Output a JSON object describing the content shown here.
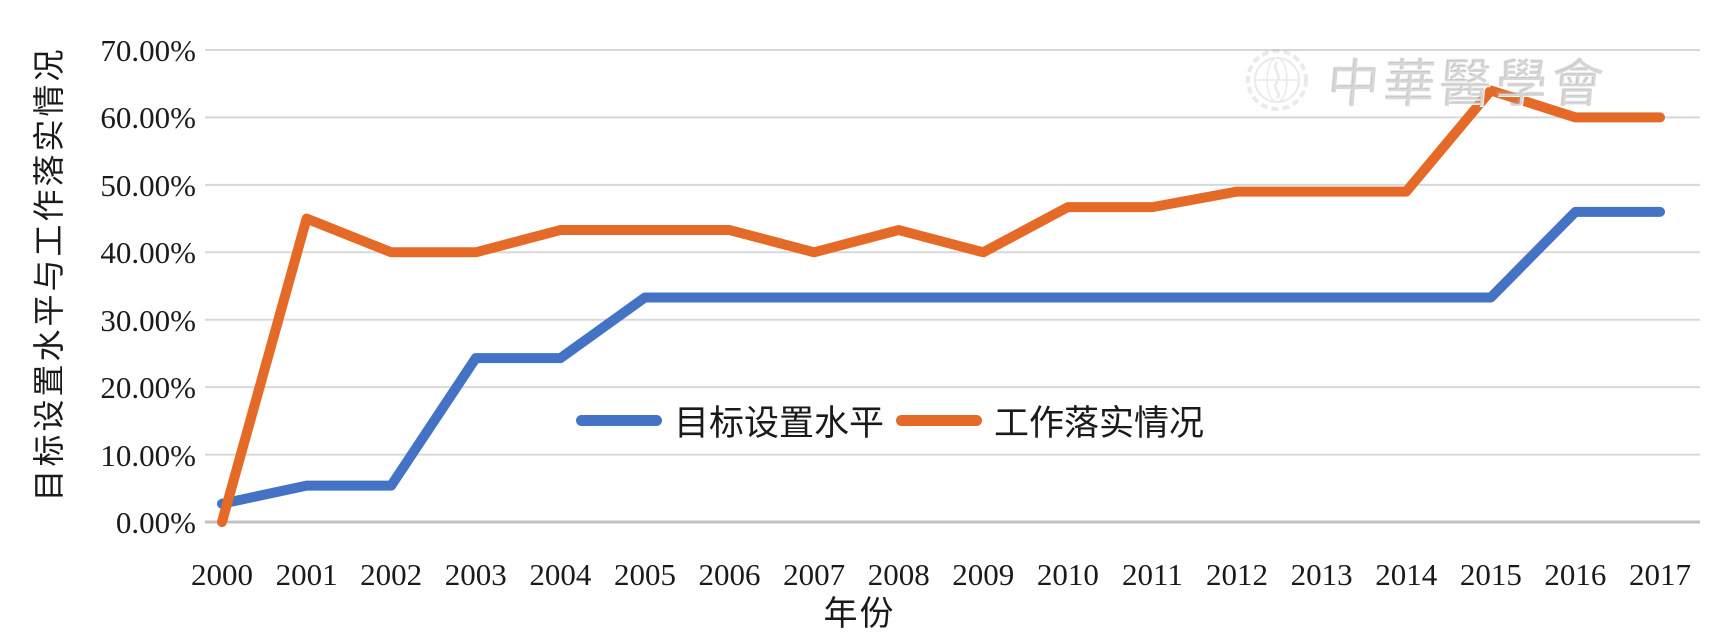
{
  "figure": {
    "watermark_text": "中華醫學會"
  },
  "chart_data": {
    "type": "line",
    "title": "",
    "xlabel": "年份",
    "ylabel": "目标设置水平与工作落实情况",
    "categories": [
      "2000",
      "2001",
      "2002",
      "2003",
      "2004",
      "2005",
      "2006",
      "2007",
      "2008",
      "2009",
      "2010",
      "2011",
      "2012",
      "2013",
      "2014",
      "2015",
      "2016",
      "2017"
    ],
    "series": [
      {
        "name": "目标设置水平",
        "color": "#4472C4",
        "values": [
          2.7,
          5.4,
          5.4,
          24.3,
          24.3,
          33.3,
          33.3,
          33.3,
          33.3,
          33.3,
          33.3,
          33.3,
          33.3,
          33.3,
          33.3,
          33.3,
          46.0,
          46.0
        ]
      },
      {
        "name": "工作落实情况",
        "color": "#E56A28",
        "values": [
          0.0,
          45.0,
          40.0,
          40.0,
          43.3,
          43.3,
          43.3,
          40.0,
          43.3,
          40.0,
          46.7,
          46.7,
          49.0,
          49.0,
          49.0,
          64.0,
          60.0,
          60.0
        ]
      }
    ],
    "ylim": [
      0,
      70
    ],
    "y_ticks": [
      {
        "value": 0,
        "label": "0.00%"
      },
      {
        "value": 10,
        "label": "10.00%"
      },
      {
        "value": 20,
        "label": "20.00%"
      },
      {
        "value": 30,
        "label": "30.00%"
      },
      {
        "value": 40,
        "label": "40.00%"
      },
      {
        "value": 50,
        "label": "50.00%"
      },
      {
        "value": 60,
        "label": "60.00%"
      },
      {
        "value": 70,
        "label": "70.00%"
      }
    ],
    "grid": "horizontal",
    "legend_position": "inside-bottom-center",
    "colors": {
      "gridline": "#D8D8D8",
      "axis_line": "#C2C2C2",
      "text": "#1A1A1A"
    }
  }
}
